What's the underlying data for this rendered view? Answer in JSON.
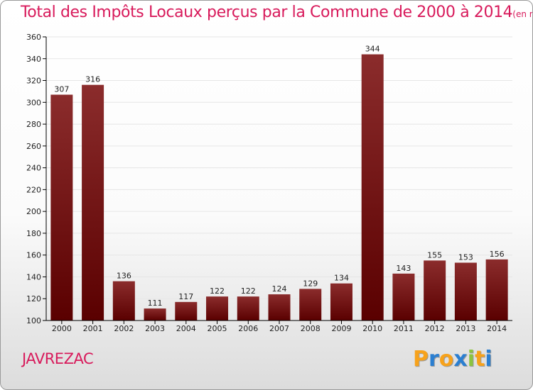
{
  "chart_data": {
    "type": "bar",
    "title": "Total des Impôts Locaux perçus par la Commune de 2000 à 2014",
    "unit_note": "(en milliers d'€)",
    "categories": [
      "2000",
      "2001",
      "2002",
      "2003",
      "2004",
      "2005",
      "2006",
      "2007",
      "2008",
      "2009",
      "2010",
      "2011",
      "2012",
      "2013",
      "2014"
    ],
    "values": [
      307,
      316,
      136,
      111,
      117,
      122,
      122,
      124,
      129,
      134,
      344,
      143,
      155,
      153,
      156
    ],
    "ylim": [
      100,
      360
    ],
    "yticks": [
      100,
      120,
      140,
      160,
      180,
      200,
      220,
      240,
      260,
      280,
      300,
      320,
      340,
      360
    ],
    "xlabel": "",
    "ylabel": "",
    "grid": true,
    "bar_color_top": "#8b2c2c",
    "bar_color_bottom": "#5a0000"
  },
  "commune": "JAVREZAC",
  "logo": {
    "letters": [
      "P",
      "r",
      "o",
      "x",
      "i",
      "t",
      "i"
    ],
    "colors": [
      "#f7a21b",
      "#2b7fd1",
      "#f7a21b",
      "#2b7fd1",
      "#8bc43f",
      "#f7a21b",
      "#2b7fd1"
    ]
  },
  "colors": {
    "title": "#d81a5b",
    "axis": "#000000",
    "grid": "#e6e6e6"
  }
}
